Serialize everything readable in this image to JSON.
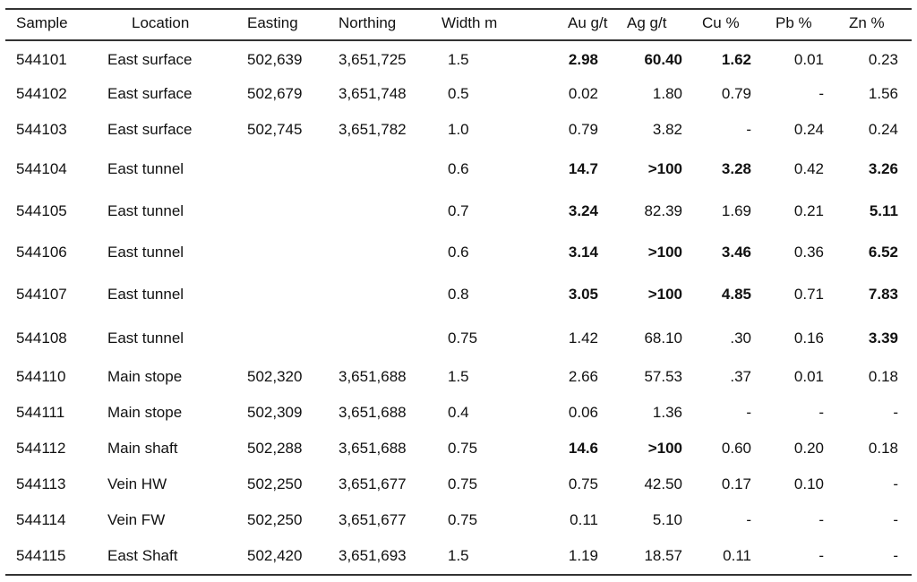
{
  "table": {
    "headers": [
      "Sample",
      "Location",
      "Easting",
      "Northing",
      "Width m",
      "Au g/t",
      "Ag g/t",
      "Cu %",
      "Pb %",
      "Zn %"
    ],
    "rows": [
      {
        "cells": [
          "544101",
          "East surface",
          "502,639",
          "3,651,725",
          "1.5",
          "2.98",
          "60.40",
          "1.62",
          "0.01",
          "0.23"
        ],
        "bold": [
          5,
          6,
          7
        ]
      },
      {
        "cells": [
          "544102",
          "East surface",
          "502,679",
          "3,651,748",
          "0.5",
          "0.02",
          "1.80",
          "0.79",
          "-",
          "1.56"
        ],
        "bold": []
      },
      {
        "cells": [
          "544103",
          "East surface",
          "502,745",
          "3,651,782",
          "1.0",
          "0.79",
          "3.82",
          "-",
          "0.24",
          "0.24"
        ],
        "bold": []
      },
      {
        "cells": [
          "544104",
          "East tunnel",
          "",
          "",
          "0.6",
          "14.7",
          ">100",
          "3.28",
          "0.42",
          "3.26"
        ],
        "bold": [
          5,
          6,
          7,
          9
        ]
      },
      {
        "cells": [
          "544105",
          "East tunnel",
          "",
          "",
          "0.7",
          "3.24",
          "82.39",
          "1.69",
          "0.21",
          "5.11"
        ],
        "bold": [
          5,
          9
        ]
      },
      {
        "cells": [
          "544106",
          "East tunnel",
          "",
          "",
          "0.6",
          "3.14",
          ">100",
          "3.46",
          "0.36",
          "6.52"
        ],
        "bold": [
          5,
          6,
          7,
          9
        ]
      },
      {
        "cells": [
          "544107",
          "East tunnel",
          "",
          "",
          "0.8",
          "3.05",
          ">100",
          "4.85",
          "0.71",
          "7.83"
        ],
        "bold": [
          5,
          6,
          7,
          9
        ]
      },
      {
        "cells": [
          "544108",
          "East tunnel",
          "",
          "",
          "0.75",
          "1.42",
          "68.10",
          ".30",
          "0.16",
          "3.39"
        ],
        "bold": [
          9
        ]
      },
      {
        "cells": [
          "544110",
          "Main stope",
          "502,320",
          "3,651,688",
          "1.5",
          "2.66",
          "57.53",
          ".37",
          "0.01",
          "0.18"
        ],
        "bold": []
      },
      {
        "cells": [
          "544111",
          "Main stope",
          "502,309",
          "3,651,688",
          "0.4",
          "0.06",
          "1.36",
          "-",
          "-",
          "-"
        ],
        "bold": []
      },
      {
        "cells": [
          "544112",
          "Main shaft",
          "502,288",
          "3,651,688",
          "0.75",
          "14.6",
          ">100",
          "0.60",
          "0.20",
          "0.18"
        ],
        "bold": [
          5,
          6
        ]
      },
      {
        "cells": [
          "544113",
          "Vein HW",
          "502,250",
          "3,651,677",
          "0.75",
          "0.75",
          "42.50",
          "0.17",
          "0.10",
          "-"
        ],
        "bold": []
      },
      {
        "cells": [
          "544114",
          "Vein FW",
          "502,250",
          "3,651,677",
          "0.75",
          "0.11",
          "5.10",
          "-",
          "-",
          "-"
        ],
        "bold": []
      },
      {
        "cells": [
          "544115",
          "East Shaft",
          "502,420",
          "3,651,693",
          "1.5",
          "1.19",
          "18.57",
          "0.11",
          "-",
          "-"
        ],
        "bold": []
      }
    ]
  }
}
